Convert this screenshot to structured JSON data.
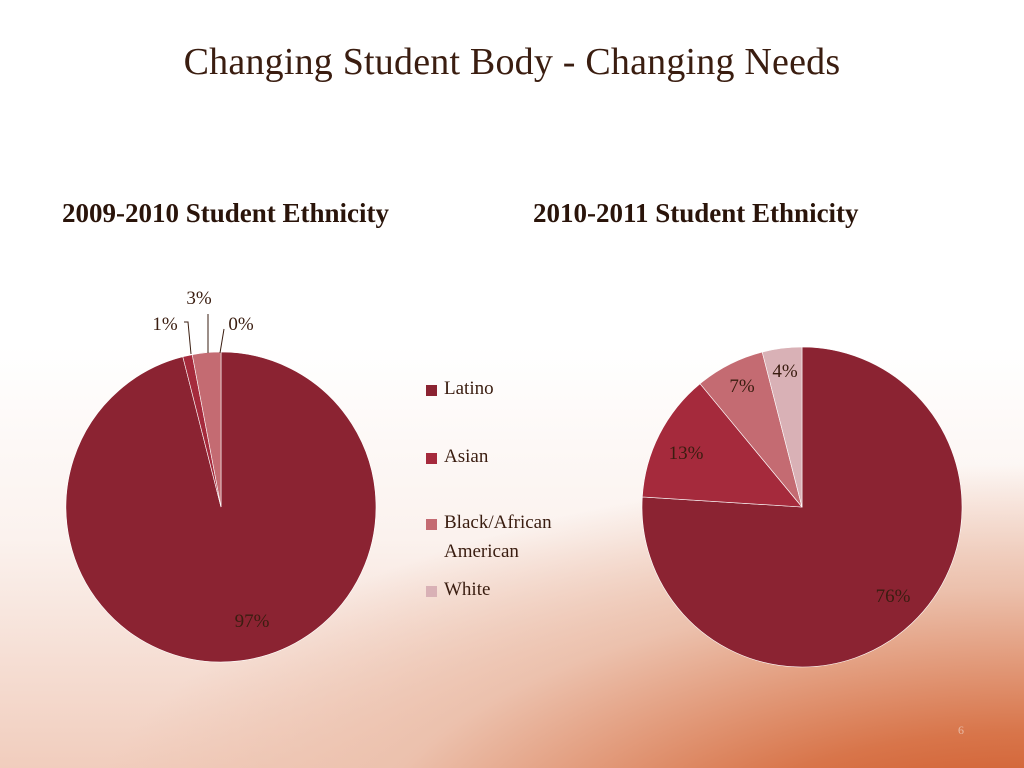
{
  "slide": {
    "title": "Changing Student Body  - Changing Needs",
    "page_number": "6"
  },
  "legend": [
    {
      "label": "Latino",
      "color": "#8b2332"
    },
    {
      "label": "Asian",
      "color": "#a52a3c"
    },
    {
      "label": "Black/African American",
      "color": "#c46b72"
    },
    {
      "label": "White",
      "color": "#d9b1b6"
    }
  ],
  "chart_data": [
    {
      "type": "pie",
      "title": "2009-2010 Student Ethnicity",
      "categories": [
        "Latino",
        "Asian",
        "Black/African American",
        "White"
      ],
      "values": [
        97,
        1,
        3,
        0
      ],
      "labels": [
        "97%",
        "1%",
        "3%",
        "0%"
      ],
      "colors": [
        "#8b2332",
        "#a52a3c",
        "#c46b72",
        "#d9b1b6"
      ],
      "legend": "center-right"
    },
    {
      "type": "pie",
      "title": "2010-2011 Student Ethnicity",
      "categories": [
        "Latino",
        "Asian",
        "Black/African American",
        "White"
      ],
      "values": [
        76,
        13,
        7,
        4
      ],
      "labels": [
        "76%",
        "13%",
        "7%",
        "4%"
      ],
      "colors": [
        "#8b2332",
        "#a52a3c",
        "#c46b72",
        "#d9b1b6"
      ],
      "legend": "none"
    }
  ]
}
